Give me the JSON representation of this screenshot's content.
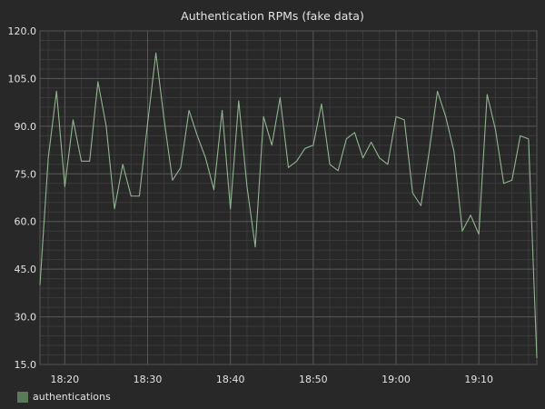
{
  "chart_data": {
    "type": "line",
    "title": "Authentication RPMs (fake data)",
    "xlabel": "",
    "ylabel": "",
    "ylim": [
      15.0,
      120.0
    ],
    "yticks": [
      "15.0",
      "30.0",
      "45.0",
      "60.0",
      "75.0",
      "90.0",
      "105.0",
      "120.0"
    ],
    "xticks": [
      {
        "label": "18:20",
        "t": 18.3333
      },
      {
        "label": "18:30",
        "t": 18.5
      },
      {
        "label": "18:40",
        "t": 18.6667
      },
      {
        "label": "18:50",
        "t": 18.8333
      },
      {
        "label": "19:00",
        "t": 19.0
      },
      {
        "label": "19:10",
        "t": 19.1667
      }
    ],
    "grid": true,
    "legend_position": "bottom-left",
    "series": [
      {
        "name": "authentications",
        "color": "#8fb58f",
        "x": [
          "18:17",
          "18:18",
          "18:19",
          "18:20",
          "18:21",
          "18:22",
          "18:23",
          "18:24",
          "18:25",
          "18:26",
          "18:27",
          "18:28",
          "18:29",
          "18:30",
          "18:31",
          "18:32",
          "18:33",
          "18:34",
          "18:35",
          "18:36",
          "18:37",
          "18:38",
          "18:39",
          "18:40",
          "18:41",
          "18:42",
          "18:43",
          "18:44",
          "18:45",
          "18:46",
          "18:47",
          "18:48",
          "18:49",
          "18:50",
          "18:51",
          "18:52",
          "18:53",
          "18:54",
          "18:55",
          "18:56",
          "18:57",
          "18:58",
          "18:59",
          "19:00",
          "19:01",
          "19:02",
          "19:03",
          "19:04",
          "19:05",
          "19:06",
          "19:07",
          "19:08",
          "19:09",
          "19:10",
          "19:11",
          "19:12",
          "19:13",
          "19:14",
          "19:15",
          "19:16",
          "19:17"
        ],
        "values": [
          40,
          80,
          101,
          71,
          92,
          79,
          79,
          104,
          90,
          64,
          78,
          68,
          68,
          91,
          113,
          92,
          73,
          77,
          95,
          87,
          80,
          70,
          95,
          64,
          98,
          71,
          52,
          93,
          84,
          99,
          77,
          79,
          83,
          84,
          97,
          78,
          76,
          86,
          88,
          80,
          85,
          80,
          78,
          93,
          92,
          69,
          65,
          82,
          101,
          93,
          82,
          57,
          62,
          56,
          100,
          89,
          72,
          73,
          87,
          86,
          17
        ]
      }
    ]
  },
  "legend": {
    "label": "authentications",
    "swatch_color": "#5a7a5a"
  },
  "colors": {
    "background": "#282828",
    "plot_background": "#282828",
    "axis_text": "#e3e3e3",
    "major_grid": "#555555",
    "minor_grid": "#3a3a3a",
    "line": "#8fb58f"
  }
}
